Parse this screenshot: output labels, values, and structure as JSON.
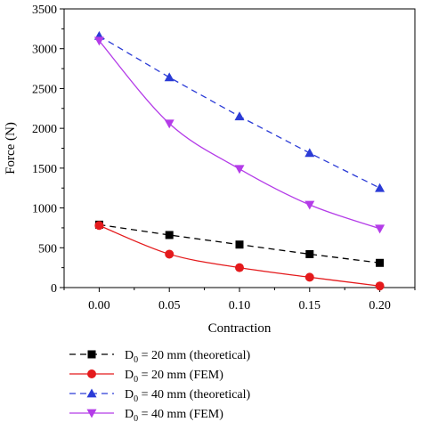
{
  "chart_data": {
    "type": "line",
    "xlabel": "Contraction",
    "ylabel": "Force (N)",
    "xlim": [
      -0.025,
      0.225
    ],
    "ylim": [
      0,
      3500
    ],
    "x_ticks": [
      0.0,
      0.05,
      0.1,
      0.15,
      0.2
    ],
    "x_tick_labels": [
      "0.00",
      "0.05",
      "0.10",
      "0.15",
      "0.20"
    ],
    "y_ticks": [
      0,
      500,
      1000,
      1500,
      2000,
      2500,
      3000,
      3500
    ],
    "y_tick_labels": [
      "0",
      "500",
      "1000",
      "1500",
      "2000",
      "2500",
      "3000",
      "3500"
    ],
    "grid": false,
    "legend_position": "bottom",
    "x": [
      0.0,
      0.05,
      0.1,
      0.15,
      0.2
    ],
    "series": [
      {
        "name_main": "D",
        "name_sub": "0",
        "name_rest": " = 20 mm (theoretical)",
        "values": [
          790,
          660,
          540,
          420,
          310
        ],
        "color": "#000000",
        "marker": "square",
        "line": "dashed"
      },
      {
        "name_main": "D",
        "name_sub": "0",
        "name_rest": " = 20 mm (FEM)",
        "values": [
          780,
          420,
          250,
          130,
          20
        ],
        "color": "#e41a1c",
        "marker": "circle",
        "line": "solid"
      },
      {
        "name_main": "D",
        "name_sub": "0",
        "name_rest": " = 40 mm (theoretical)",
        "values": [
          3160,
          2640,
          2150,
          1690,
          1250
        ],
        "color": "#2b3bd6",
        "marker": "triangle-up",
        "line": "dashed"
      },
      {
        "name_main": "D",
        "name_sub": "0",
        "name_rest": " = 40 mm (FEM)",
        "values": [
          3100,
          2060,
          1490,
          1040,
          740
        ],
        "color": "#b43ce8",
        "marker": "triangle-down",
        "line": "solid"
      }
    ]
  }
}
